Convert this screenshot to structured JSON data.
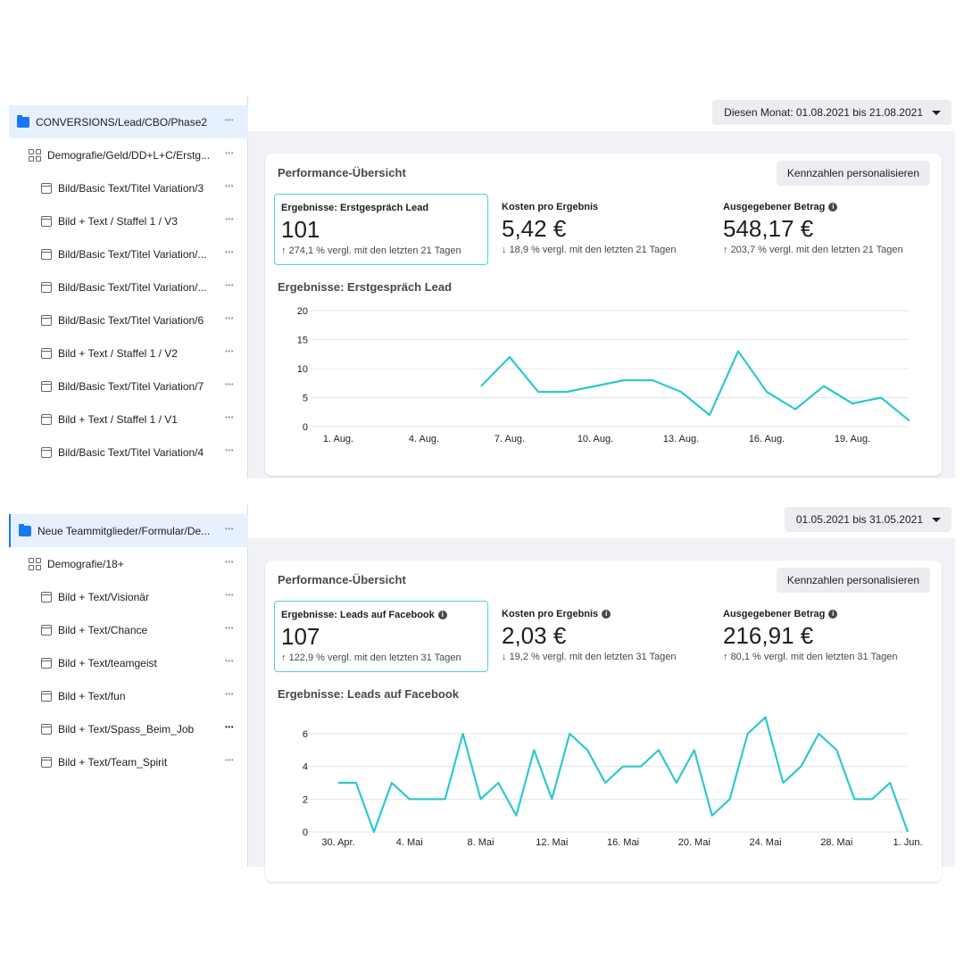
{
  "panels": [
    {
      "sidebar": [
        {
          "icon": "folder-icon",
          "label": "CONVERSIONS/Lead/CBO/Phase2",
          "level": 0
        },
        {
          "icon": "ad-set-grid-icon",
          "label": "Demografie/Geld/DD+L+C/Erstg...",
          "level": 1
        },
        {
          "icon": "ad-icon",
          "label": "Bild/Basic Text/Titel Variation/3",
          "level": 2
        },
        {
          "icon": "ad-icon",
          "label": "Bild + Text / Staffel 1 / V3",
          "level": 2
        },
        {
          "icon": "ad-icon",
          "label": "Bild/Basic Text/Titel Variation/...",
          "level": 2
        },
        {
          "icon": "ad-icon",
          "label": "Bild/Basic Text/Titel Variation/...",
          "level": 2
        },
        {
          "icon": "ad-icon",
          "label": "Bild/Basic Text/Titel Variation/6",
          "level": 2
        },
        {
          "icon": "ad-icon",
          "label": "Bild + Text / Staffel 1 / V2",
          "level": 2
        },
        {
          "icon": "ad-icon",
          "label": "Bild/Basic Text/Titel Variation/7",
          "level": 2
        },
        {
          "icon": "ad-icon",
          "label": "Bild + Text / Staffel 1 / V1",
          "level": 2
        },
        {
          "icon": "ad-icon",
          "label": "Bild/Basic Text/Titel Variation/4",
          "level": 2
        }
      ],
      "date_range": "Diesen Monat: 01.08.2021 bis 21.08.2021",
      "card_title": "Performance-Übersicht",
      "customize_button": "Kennzahlen personalisieren",
      "metrics": [
        {
          "label": "Ergebnisse: Erstgespräch Lead",
          "info": false,
          "value": "101",
          "arrow": "↑",
          "compare": "274,1 % vergl. mit den letzten 21 Tagen"
        },
        {
          "label": "Kosten pro Ergebnis",
          "info": false,
          "value": "5,42 €",
          "arrow": "↓",
          "compare": "18,9 % vergl. mit den letzten 21 Tagen"
        },
        {
          "label": "Ausgegebener Betrag",
          "info": true,
          "value": "548,17 €",
          "arrow": "↑",
          "compare": "203,7 % vergl. mit den letzten 21 Tagen"
        }
      ],
      "chart_title": "Ergebnisse: Erstgespräch Lead"
    },
    {
      "sidebar": [
        {
          "icon": "folder-icon",
          "label": "Neue Teammitglieder/Formular/De...",
          "level": 0
        },
        {
          "icon": "ad-set-grid-icon",
          "label": "Demografie/18+",
          "level": 1
        },
        {
          "icon": "ad-icon",
          "label": "Bild + Text/Visionär",
          "level": 2
        },
        {
          "icon": "ad-icon",
          "label": "Bild + Text/Chance",
          "level": 2
        },
        {
          "icon": "ad-icon",
          "label": "Bild + Text/teamgeist",
          "level": 2
        },
        {
          "icon": "ad-icon",
          "label": "Bild + Text/fun",
          "level": 2
        },
        {
          "icon": "ad-icon",
          "label": "Bild + Text/Spass_Beim_Job",
          "level": 2
        },
        {
          "icon": "ad-icon",
          "label": "Bild + Text/Team_Spirit",
          "level": 2
        }
      ],
      "date_range": "01.05.2021 bis 31.05.2021",
      "card_title": "Performance-Übersicht",
      "customize_button": "Kennzahlen personalisieren",
      "metrics": [
        {
          "label": "Ergebnisse: Leads auf Facebook",
          "info": true,
          "value": "107",
          "arrow": "↑",
          "compare": "122,9 % vergl. mit den letzten 31 Tagen"
        },
        {
          "label": "Kosten pro Ergebnis",
          "info": true,
          "value": "2,03 €",
          "arrow": "↓",
          "compare": "19,2 % vergl. mit den letzten 31 Tagen"
        },
        {
          "label": "Ausgegebener Betrag",
          "info": true,
          "value": "216,91 €",
          "arrow": "↑",
          "compare": "80,1 % vergl. mit den letzten 31 Tagen"
        }
      ],
      "chart_title": "Ergebnisse: Leads auf Facebook"
    }
  ],
  "colors": {
    "line": "#2ec9cc",
    "accent": "#1877f2",
    "selected_bg": "#e7f0fd",
    "page_bg": "#f0f2f5"
  },
  "chart_data": [
    {
      "type": "line",
      "title": "Ergebnisse: Erstgespräch Lead",
      "ylim": [
        0,
        20
      ],
      "yticks": [
        0,
        5,
        10,
        15,
        20
      ],
      "grid": true,
      "x": [
        "1. Aug.",
        "2. Aug.",
        "3. Aug.",
        "4. Aug.",
        "5. Aug.",
        "6. Aug.",
        "7. Aug.",
        "8. Aug.",
        "9. Aug.",
        "10. Aug.",
        "11. Aug.",
        "12. Aug.",
        "13. Aug.",
        "14. Aug.",
        "15. Aug.",
        "16. Aug.",
        "17. Aug.",
        "18. Aug.",
        "19. Aug.",
        "20. Aug.",
        "21. Aug."
      ],
      "xtick_labels": {
        "0": "1. Aug.",
        "3": "4. Aug.",
        "6": "7. Aug.",
        "9": "10. Aug.",
        "12": "13. Aug.",
        "15": "16. Aug.",
        "18": "19. Aug."
      },
      "values": [
        null,
        null,
        null,
        null,
        null,
        7,
        12,
        6,
        6,
        7,
        8,
        8,
        6,
        2,
        13,
        6,
        3,
        7,
        4,
        5,
        1
      ]
    },
    {
      "type": "line",
      "title": "Ergebnisse: Leads auf Facebook",
      "ylim": [
        0,
        7
      ],
      "yticks": [
        0,
        2,
        4,
        6
      ],
      "grid": true,
      "x": [
        "30. Apr.",
        "1. Mai",
        "2. Mai",
        "3. Mai",
        "4. Mai",
        "5. Mai",
        "6. Mai",
        "7. Mai",
        "8. Mai",
        "9. Mai",
        "10. Mai",
        "11. Mai",
        "12. Mai",
        "13. Mai",
        "14. Mai",
        "15. Mai",
        "16. Mai",
        "17. Mai",
        "18. Mai",
        "19. Mai",
        "20. Mai",
        "21. Mai",
        "22. Mai",
        "23. Mai",
        "24. Mai",
        "25. Mai",
        "26. Mai",
        "27. Mai",
        "28. Mai",
        "29. Mai",
        "30. Mai",
        "31. Mai",
        "1. Jun."
      ],
      "xtick_labels": {
        "0": "30. Apr.",
        "4": "4. Mai",
        "8": "8. Mai",
        "12": "12. Mai",
        "16": "16. Mai",
        "20": "20. Mai",
        "24": "24. Mai",
        "28": "28. Mai",
        "32": "1. Jun."
      },
      "values": [
        3,
        3,
        0,
        3,
        2,
        2,
        2,
        6,
        2,
        3,
        1,
        5,
        2,
        6,
        5,
        3,
        4,
        4,
        5,
        3,
        5,
        1,
        2,
        6,
        7,
        3,
        4,
        6,
        5,
        2,
        2,
        3,
        0
      ]
    }
  ]
}
